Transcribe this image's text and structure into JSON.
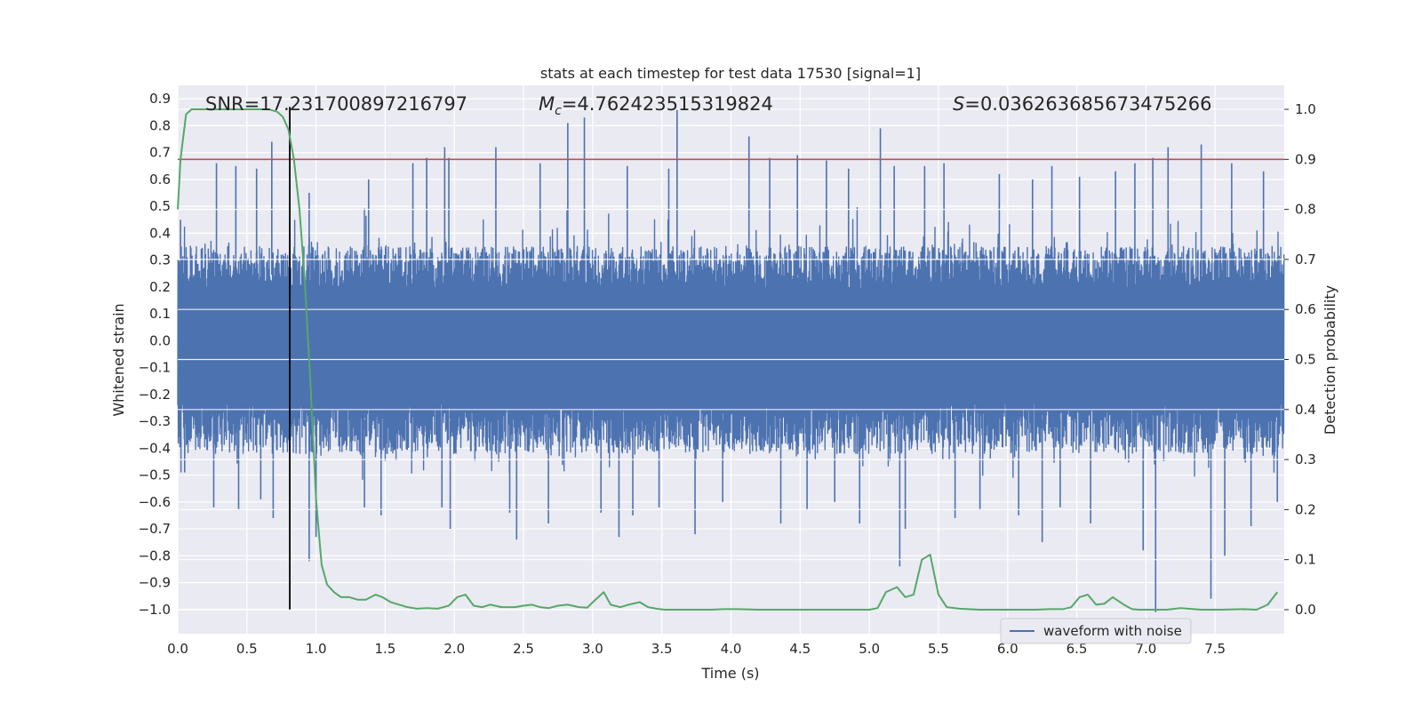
{
  "chart_data": {
    "type": "line",
    "title": "stats at each timestep for test data 17530 [signal=1]",
    "xlabel": "Time (s)",
    "ylabel": "Whitened strain",
    "ylabel_right": "Detection probability",
    "xlim": [
      0.0,
      8.0
    ],
    "ylim": [
      -1.09,
      0.95
    ],
    "ylim_right": [
      -0.048,
      1.048
    ],
    "x_ticks": [
      0.0,
      0.5,
      1.0,
      1.5,
      2.0,
      2.5,
      3.0,
      3.5,
      4.0,
      4.5,
      5.0,
      5.5,
      6.0,
      6.5,
      7.0,
      7.5
    ],
    "x_tick_labels": [
      "0.0",
      "0.5",
      "1.0",
      "1.5",
      "2.0",
      "2.5",
      "3.0",
      "3.5",
      "4.0",
      "4.5",
      "5.0",
      "5.5",
      "6.0",
      "6.5",
      "7.0",
      "7.5"
    ],
    "y_ticks": [
      0.9,
      0.8,
      0.7,
      0.6,
      0.5,
      0.4,
      0.3,
      0.2,
      0.1,
      0.0,
      -0.1,
      -0.2,
      -0.3,
      -0.4,
      -0.5,
      -0.6,
      -0.7,
      -0.8,
      -0.9,
      -1.0
    ],
    "y_tick_labels": [
      "0.9",
      "0.8",
      "0.7",
      "0.6",
      "0.5",
      "0.4",
      "0.3",
      "0.2",
      "0.1",
      "0.0",
      "−0.1",
      "−0.2",
      "−0.3",
      "−0.4",
      "−0.5",
      "−0.6",
      "−0.7",
      "−0.8",
      "−0.9",
      "−1.0"
    ],
    "y_right_ticks": [
      1.0,
      0.9,
      0.8,
      0.7,
      0.6,
      0.5,
      0.4,
      0.3,
      0.2,
      0.1,
      0.0
    ],
    "y_right_tick_labels": [
      "1.0",
      "0.9",
      "0.8",
      "0.7",
      "0.6",
      "0.5",
      "0.4",
      "0.3",
      "0.2",
      "0.1",
      "0.0"
    ],
    "grid": true,
    "annotations": {
      "snr": "SNR=17.231700897216797",
      "mc_symbol": "M",
      "mc_sub": "c",
      "mc_value": "=4.762423515319824",
      "s_symbol": "S",
      "s_value": "=0.036263685673475266"
    },
    "threshold_right": 0.9,
    "marker_time": 0.81,
    "marker_range": [
      -1.0,
      0.87
    ],
    "series": [
      {
        "name": "waveform with noise",
        "role": "strain",
        "color": "#4c72b0",
        "sample_rate": 512,
        "duration": 8.0,
        "envelope_top": 0.35,
        "envelope_bottom": -0.42,
        "spikes": [
          {
            "x": 0.02,
            "y": 0.45
          },
          {
            "x": 0.05,
            "y": -0.49
          },
          {
            "x": 0.28,
            "y": 0.66
          },
          {
            "x": 0.26,
            "y": -0.62
          },
          {
            "x": 0.42,
            "y": 0.65
          },
          {
            "x": 0.44,
            "y": -0.63
          },
          {
            "x": 0.57,
            "y": 0.64
          },
          {
            "x": 0.6,
            "y": -0.59
          },
          {
            "x": 0.68,
            "y": 0.74
          },
          {
            "x": 0.69,
            "y": -0.66
          },
          {
            "x": 0.95,
            "y": 0.55
          },
          {
            "x": 0.95,
            "y": -0.82
          },
          {
            "x": 1.0,
            "y": -0.73
          },
          {
            "x": 1.35,
            "y": -0.62
          },
          {
            "x": 1.38,
            "y": 0.6
          },
          {
            "x": 1.47,
            "y": -0.65
          },
          {
            "x": 1.7,
            "y": 0.66
          },
          {
            "x": 1.8,
            "y": 0.68
          },
          {
            "x": 1.91,
            "y": -0.62
          },
          {
            "x": 1.93,
            "y": 0.72
          },
          {
            "x": 1.96,
            "y": 0.68
          },
          {
            "x": 1.97,
            "y": -0.7
          },
          {
            "x": 2.3,
            "y": 0.72
          },
          {
            "x": 2.4,
            "y": -0.64
          },
          {
            "x": 2.45,
            "y": -0.74
          },
          {
            "x": 2.62,
            "y": 0.66
          },
          {
            "x": 2.68,
            "y": -0.68
          },
          {
            "x": 2.82,
            "y": 0.81
          },
          {
            "x": 2.94,
            "y": 0.83
          },
          {
            "x": 3.06,
            "y": -0.64
          },
          {
            "x": 3.19,
            "y": -0.73
          },
          {
            "x": 3.25,
            "y": 0.65
          },
          {
            "x": 3.29,
            "y": -0.65
          },
          {
            "x": 3.48,
            "y": -0.62
          },
          {
            "x": 3.55,
            "y": 0.64
          },
          {
            "x": 3.61,
            "y": 0.86
          },
          {
            "x": 3.74,
            "y": -0.72
          },
          {
            "x": 3.94,
            "y": -0.6
          },
          {
            "x": 4.13,
            "y": 0.76
          },
          {
            "x": 4.28,
            "y": 0.68
          },
          {
            "x": 4.36,
            "y": -0.68
          },
          {
            "x": 4.48,
            "y": 0.69
          },
          {
            "x": 4.55,
            "y": -0.63
          },
          {
            "x": 4.69,
            "y": 0.67
          },
          {
            "x": 4.75,
            "y": -0.6
          },
          {
            "x": 4.85,
            "y": 0.64
          },
          {
            "x": 4.93,
            "y": -0.68
          },
          {
            "x": 5.08,
            "y": 0.79
          },
          {
            "x": 5.18,
            "y": 0.65
          },
          {
            "x": 5.22,
            "y": -0.84
          },
          {
            "x": 5.26,
            "y": -0.7
          },
          {
            "x": 5.4,
            "y": 0.65
          },
          {
            "x": 5.54,
            "y": 0.66
          },
          {
            "x": 5.62,
            "y": -0.66
          },
          {
            "x": 5.8,
            "y": -0.63
          },
          {
            "x": 5.94,
            "y": 0.62
          },
          {
            "x": 6.08,
            "y": -0.65
          },
          {
            "x": 6.18,
            "y": 0.6
          },
          {
            "x": 6.25,
            "y": -0.75
          },
          {
            "x": 6.32,
            "y": 0.65
          },
          {
            "x": 6.38,
            "y": -0.62
          },
          {
            "x": 6.52,
            "y": 0.61
          },
          {
            "x": 6.6,
            "y": -0.68
          },
          {
            "x": 6.78,
            "y": 0.63
          },
          {
            "x": 6.92,
            "y": 0.66
          },
          {
            "x": 6.98,
            "y": -0.78
          },
          {
            "x": 7.05,
            "y": 0.68
          },
          {
            "x": 7.07,
            "y": -1.01
          },
          {
            "x": 7.16,
            "y": 0.72
          },
          {
            "x": 7.4,
            "y": 0.73
          },
          {
            "x": 7.47,
            "y": -0.96
          },
          {
            "x": 7.57,
            "y": -0.8
          },
          {
            "x": 7.62,
            "y": 0.66
          },
          {
            "x": 7.76,
            "y": -0.69
          },
          {
            "x": 7.85,
            "y": 0.63
          },
          {
            "x": 7.95,
            "y": -0.6
          }
        ]
      },
      {
        "name": "detection probability",
        "role": "probability",
        "color": "#55a868",
        "x": [
          0.0,
          0.02,
          0.06,
          0.1,
          0.2,
          0.4,
          0.6,
          0.66,
          0.72,
          0.76,
          0.8,
          0.84,
          0.88,
          0.92,
          0.96,
          1.0,
          1.04,
          1.08,
          1.13,
          1.18,
          1.24,
          1.3,
          1.36,
          1.43,
          1.48,
          1.54,
          1.6,
          1.66,
          1.73,
          1.8,
          1.88,
          1.96,
          2.02,
          2.08,
          2.14,
          2.2,
          2.26,
          2.34,
          2.44,
          2.5,
          2.56,
          2.62,
          2.68,
          2.75,
          2.82,
          2.9,
          2.96,
          3.02,
          3.08,
          3.13,
          3.2,
          3.26,
          3.34,
          3.4,
          3.46,
          3.52,
          3.62,
          3.75,
          3.85,
          3.95,
          4.05,
          4.2,
          4.4,
          4.6,
          4.8,
          5.0,
          5.06,
          5.12,
          5.2,
          5.26,
          5.32,
          5.38,
          5.44,
          5.5,
          5.56,
          5.65,
          5.8,
          6.0,
          6.2,
          6.3,
          6.4,
          6.46,
          6.52,
          6.58,
          6.64,
          6.7,
          6.76,
          6.84,
          6.9,
          6.95,
          7.05,
          7.15,
          7.25,
          7.4,
          7.55,
          7.7,
          7.8,
          7.88,
          7.95
        ],
        "values": [
          0.8,
          0.9,
          0.99,
          1.0,
          1.0,
          1.0,
          1.0,
          1.0,
          0.995,
          0.985,
          0.96,
          0.9,
          0.8,
          0.65,
          0.45,
          0.22,
          0.09,
          0.05,
          0.035,
          0.025,
          0.025,
          0.02,
          0.02,
          0.03,
          0.025,
          0.015,
          0.01,
          0.005,
          0.002,
          0.003,
          0.002,
          0.008,
          0.025,
          0.03,
          0.008,
          0.005,
          0.01,
          0.005,
          0.005,
          0.008,
          0.01,
          0.005,
          0.003,
          0.008,
          0.01,
          0.005,
          0.004,
          0.02,
          0.035,
          0.01,
          0.005,
          0.01,
          0.015,
          0.005,
          0.002,
          0.0,
          0.0,
          0.0,
          0.0,
          0.001,
          0.001,
          0.0,
          0.0,
          0.0,
          0.0,
          0.0,
          0.003,
          0.035,
          0.045,
          0.025,
          0.03,
          0.1,
          0.11,
          0.03,
          0.005,
          0.002,
          0.0,
          0.0,
          0.0,
          0.001,
          0.001,
          0.005,
          0.025,
          0.03,
          0.01,
          0.012,
          0.025,
          0.01,
          0.001,
          0.0,
          0.0,
          0.0,
          0.003,
          0.0,
          0.0,
          0.001,
          0.0,
          0.01,
          0.035
        ]
      },
      {
        "name": "detection threshold",
        "role": "threshold",
        "color": "#c44e52"
      },
      {
        "name": "signal peak marker",
        "role": "marker",
        "color": "#000000"
      }
    ],
    "legend": {
      "position": "lower-right",
      "entries": [
        {
          "label": "waveform with noise",
          "color": "#4c72b0"
        }
      ]
    }
  },
  "colors": {
    "axes_bg": "#eaeaf2",
    "grid": "#ffffff",
    "text": "#262626",
    "strain": "#4c72b0",
    "probability": "#55a868",
    "threshold": "#c44e52",
    "marker": "#000000"
  }
}
